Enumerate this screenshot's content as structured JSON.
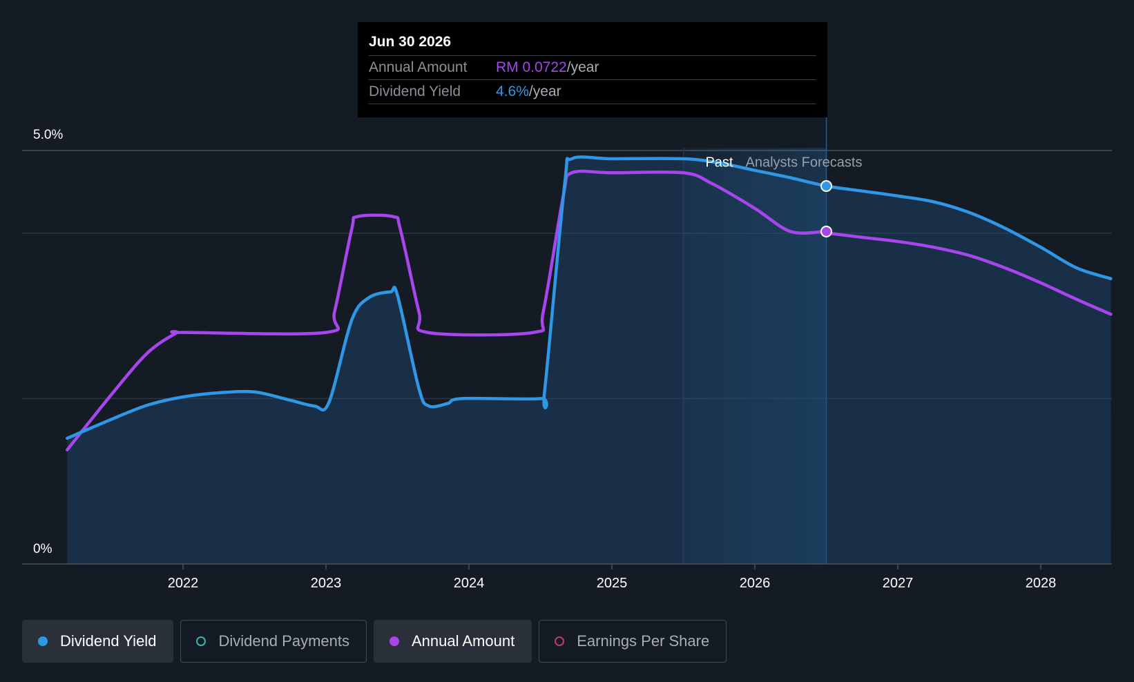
{
  "chart_data": {
    "type": "line",
    "x_ticks": [
      "2022",
      "2023",
      "2024",
      "2025",
      "2026",
      "2027",
      "2028"
    ],
    "y_ticks": [
      "0%",
      "5.0%"
    ],
    "ylim": [
      0,
      5.0
    ],
    "divider_labels": {
      "past": "Past",
      "forecast": "Analysts Forecasts"
    },
    "past_until": 2025.5,
    "grid": true,
    "series": [
      {
        "name": "Dividend Yield",
        "color": "#2f97e6",
        "points": [
          [
            2021.19,
            1.52
          ],
          [
            2021.5,
            1.75
          ],
          [
            2021.75,
            1.92
          ],
          [
            2022.0,
            2.02
          ],
          [
            2022.25,
            2.07
          ],
          [
            2022.5,
            2.08
          ],
          [
            2022.75,
            1.98
          ],
          [
            2022.92,
            1.91
          ],
          [
            2023.02,
            1.95
          ],
          [
            2023.18,
            2.95
          ],
          [
            2023.3,
            3.22
          ],
          [
            2023.45,
            3.29
          ],
          [
            2023.5,
            3.25
          ],
          [
            2023.65,
            2.12
          ],
          [
            2023.72,
            1.91
          ],
          [
            2023.85,
            1.94
          ],
          [
            2023.95,
            2.0
          ],
          [
            2024.5,
            2.0
          ],
          [
            2024.53,
            2.1
          ],
          [
            2024.67,
            4.6
          ],
          [
            2024.72,
            4.9
          ],
          [
            2025.0,
            4.9
          ],
          [
            2025.5,
            4.9
          ],
          [
            2025.75,
            4.85
          ],
          [
            2026.0,
            4.76
          ],
          [
            2026.25,
            4.67
          ],
          [
            2026.5,
            4.57
          ],
          [
            2026.75,
            4.51
          ],
          [
            2027.0,
            4.45
          ],
          [
            2027.25,
            4.38
          ],
          [
            2027.5,
            4.25
          ],
          [
            2027.75,
            4.06
          ],
          [
            2028.0,
            3.83
          ],
          [
            2028.25,
            3.58
          ],
          [
            2028.49,
            3.45
          ]
        ]
      },
      {
        "name": "Annual Amount",
        "color": "#a646ec",
        "points": [
          [
            2021.19,
            1.38
          ],
          [
            2021.5,
            2.05
          ],
          [
            2021.75,
            2.55
          ],
          [
            2021.95,
            2.79
          ],
          [
            2022.0,
            2.8
          ],
          [
            2023.0,
            2.8
          ],
          [
            2023.06,
            3.05
          ],
          [
            2023.18,
            4.05
          ],
          [
            2023.22,
            4.2
          ],
          [
            2023.47,
            4.2
          ],
          [
            2023.52,
            4.05
          ],
          [
            2023.65,
            3.05
          ],
          [
            2023.71,
            2.8
          ],
          [
            2024.45,
            2.8
          ],
          [
            2024.52,
            3.05
          ],
          [
            2024.66,
            4.45
          ],
          [
            2024.72,
            4.73
          ],
          [
            2025.0,
            4.73
          ],
          [
            2025.5,
            4.73
          ],
          [
            2025.7,
            4.6
          ],
          [
            2026.0,
            4.3
          ],
          [
            2026.25,
            4.02
          ],
          [
            2026.5,
            4.02
          ],
          [
            2026.52,
            4.0
          ],
          [
            2026.75,
            3.95
          ],
          [
            2027.0,
            3.9
          ],
          [
            2027.25,
            3.83
          ],
          [
            2027.5,
            3.73
          ],
          [
            2027.75,
            3.58
          ],
          [
            2028.0,
            3.4
          ],
          [
            2028.25,
            3.2
          ],
          [
            2028.49,
            3.02
          ]
        ]
      }
    ],
    "highlight": {
      "x": 2026.5,
      "yield": 4.57,
      "amount": 4.02
    }
  },
  "tooltip": {
    "date": "Jun 30 2026",
    "rows": [
      {
        "label": "Annual Amount",
        "value": "RM 0.0722",
        "unit": "/year",
        "color": "#a646ec"
      },
      {
        "label": "Dividend Yield",
        "value": "4.6%",
        "unit": "/year",
        "color": "#2f97e6"
      }
    ]
  },
  "legend": [
    {
      "label": "Dividend Yield",
      "active": true,
      "color": "#2f97e6",
      "filled": true
    },
    {
      "label": "Dividend Payments",
      "active": false,
      "color": "#38b5ad",
      "filled": false
    },
    {
      "label": "Annual Amount",
      "active": true,
      "color": "#a646ec",
      "filled": true
    },
    {
      "label": "Earnings Per Share",
      "active": false,
      "color": "#c23a6e",
      "filled": false
    }
  ]
}
